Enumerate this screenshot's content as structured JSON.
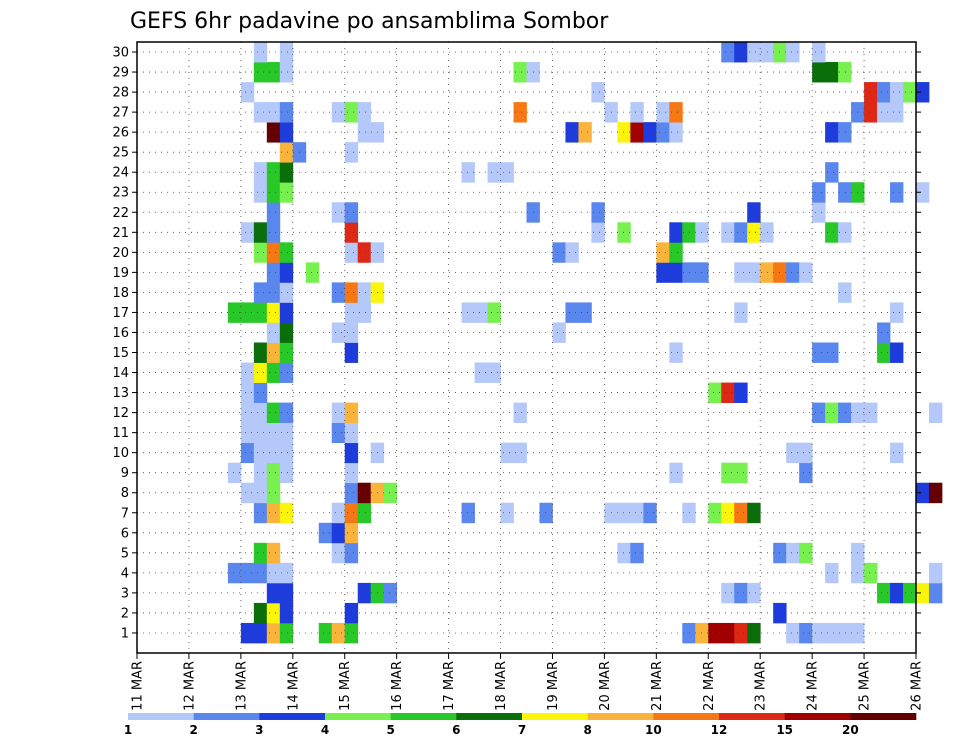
{
  "chart_data": {
    "type": "heatmap",
    "title": "GEFS 6hr padavine po ansamblima Sombor",
    "x_labels": [
      "11 MAR",
      "12 MAR",
      "13 MAR",
      "14 MAR",
      "15 MAR",
      "16 MAR",
      "17 MAR",
      "18 MAR",
      "19 MAR",
      "20 MAR",
      "21 MAR",
      "22 MAR",
      "23 MAR",
      "24 MAR",
      "25 MAR",
      "26 MAR"
    ],
    "y_labels": [
      "1",
      "2",
      "3",
      "4",
      "5",
      "6",
      "7",
      "8",
      "9",
      "10",
      "11",
      "12",
      "13",
      "14",
      "15",
      "16",
      "17",
      "18",
      "19",
      "20",
      "21",
      "22",
      "23",
      "24",
      "25",
      "26",
      "27",
      "28",
      "29",
      "30"
    ],
    "grid": true,
    "steps_per_day": 4,
    "legend_position": "bottom",
    "colorbar": {
      "labels": [
        "1",
        "2",
        "3",
        "4",
        "5",
        "6",
        "7",
        "8",
        "10",
        "12",
        "15",
        "20"
      ],
      "colors": [
        "#b4c8fa",
        "#5a87ee",
        "#1e3cdc",
        "#78f050",
        "#28c828",
        "#0a6e0a",
        "#faf50a",
        "#fab43c",
        "#f57814",
        "#dc2814",
        "#a00000",
        "#640000"
      ]
    },
    "cells": [
      [
        13.0,
        1,
        3
      ],
      [
        13.25,
        1,
        3
      ],
      [
        13.5,
        1,
        8
      ],
      [
        13.75,
        1,
        5
      ],
      [
        14.5,
        1,
        5
      ],
      [
        14.75,
        1,
        8
      ],
      [
        15.0,
        1,
        5
      ],
      [
        21.5,
        1,
        2
      ],
      [
        21.75,
        1,
        8
      ],
      [
        22.0,
        1,
        11
      ],
      [
        22.25,
        1,
        11
      ],
      [
        22.5,
        1,
        10
      ],
      [
        22.75,
        1,
        6
      ],
      [
        23.5,
        1,
        1
      ],
      [
        23.75,
        1,
        2
      ],
      [
        24.0,
        1,
        1
      ],
      [
        24.25,
        1,
        1
      ],
      [
        24.5,
        1,
        1
      ],
      [
        24.75,
        1,
        1
      ],
      [
        13.25,
        2,
        6
      ],
      [
        13.5,
        2,
        7
      ],
      [
        13.75,
        2,
        3
      ],
      [
        15.0,
        2,
        3
      ],
      [
        23.25,
        2,
        3
      ],
      [
        13.5,
        3,
        3
      ],
      [
        13.75,
        3,
        3
      ],
      [
        15.25,
        3,
        3
      ],
      [
        15.5,
        3,
        5
      ],
      [
        15.75,
        3,
        2
      ],
      [
        22.25,
        3,
        1
      ],
      [
        22.5,
        3,
        2
      ],
      [
        22.75,
        3,
        1
      ],
      [
        25.25,
        3,
        5
      ],
      [
        25.5,
        3,
        3
      ],
      [
        25.75,
        3,
        5
      ],
      [
        26.0,
        3,
        7
      ],
      [
        26.25,
        3,
        2
      ],
      [
        12.75,
        4,
        2
      ],
      [
        13.0,
        4,
        2
      ],
      [
        13.25,
        4,
        2
      ],
      [
        13.5,
        4,
        1
      ],
      [
        13.75,
        4,
        1
      ],
      [
        24.25,
        4,
        1
      ],
      [
        24.75,
        4,
        1
      ],
      [
        25.0,
        4,
        4
      ],
      [
        26.25,
        4,
        1
      ],
      [
        13.25,
        5,
        5
      ],
      [
        13.5,
        5,
        8
      ],
      [
        14.75,
        5,
        1
      ],
      [
        15.0,
        5,
        2
      ],
      [
        20.25,
        5,
        1
      ],
      [
        20.5,
        5,
        2
      ],
      [
        23.25,
        5,
        2
      ],
      [
        23.5,
        5,
        1
      ],
      [
        23.75,
        5,
        4
      ],
      [
        24.75,
        5,
        1
      ],
      [
        14.5,
        6,
        2
      ],
      [
        14.75,
        6,
        3
      ],
      [
        15.0,
        6,
        8
      ],
      [
        13.25,
        7,
        2
      ],
      [
        13.5,
        7,
        8
      ],
      [
        13.75,
        7,
        7
      ],
      [
        14.75,
        7,
        1
      ],
      [
        15.0,
        7,
        9
      ],
      [
        15.25,
        7,
        5
      ],
      [
        17.25,
        7,
        2
      ],
      [
        18.0,
        7,
        1
      ],
      [
        18.75,
        7,
        2
      ],
      [
        20.0,
        7,
        1
      ],
      [
        20.25,
        7,
        1
      ],
      [
        20.5,
        7,
        1
      ],
      [
        20.75,
        7,
        2
      ],
      [
        21.5,
        7,
        1
      ],
      [
        22.0,
        7,
        4
      ],
      [
        22.25,
        7,
        7
      ],
      [
        22.5,
        7,
        9
      ],
      [
        22.75,
        7,
        6
      ],
      [
        13.0,
        8,
        1
      ],
      [
        13.25,
        8,
        1
      ],
      [
        13.5,
        8,
        4
      ],
      [
        15.0,
        8,
        2
      ],
      [
        15.25,
        8,
        12
      ],
      [
        15.5,
        8,
        8
      ],
      [
        15.75,
        8,
        4
      ],
      [
        26.0,
        8,
        3
      ],
      [
        26.25,
        8,
        12
      ],
      [
        12.75,
        9,
        1
      ],
      [
        13.25,
        9,
        1
      ],
      [
        13.5,
        9,
        4
      ],
      [
        13.75,
        9,
        1
      ],
      [
        15.0,
        9,
        1
      ],
      [
        21.25,
        9,
        1
      ],
      [
        22.25,
        9,
        4
      ],
      [
        22.5,
        9,
        4
      ],
      [
        23.75,
        9,
        2
      ],
      [
        13.0,
        10,
        2
      ],
      [
        13.25,
        10,
        1
      ],
      [
        13.5,
        10,
        1
      ],
      [
        13.75,
        10,
        1
      ],
      [
        15.0,
        10,
        3
      ],
      [
        15.5,
        10,
        1
      ],
      [
        18.0,
        10,
        1
      ],
      [
        18.25,
        10,
        1
      ],
      [
        23.5,
        10,
        1
      ],
      [
        23.75,
        10,
        1
      ],
      [
        25.5,
        10,
        1
      ],
      [
        13.0,
        11,
        1
      ],
      [
        13.25,
        11,
        1
      ],
      [
        13.5,
        11,
        1
      ],
      [
        13.75,
        11,
        1
      ],
      [
        14.75,
        11,
        2
      ],
      [
        15.0,
        11,
        1
      ],
      [
        13.0,
        12,
        1
      ],
      [
        13.25,
        12,
        1
      ],
      [
        13.5,
        12,
        5
      ],
      [
        13.75,
        12,
        2
      ],
      [
        14.75,
        12,
        1
      ],
      [
        15.0,
        12,
        8
      ],
      [
        18.25,
        12,
        1
      ],
      [
        24.0,
        12,
        2
      ],
      [
        24.25,
        12,
        4
      ],
      [
        24.5,
        12,
        2
      ],
      [
        24.75,
        12,
        1
      ],
      [
        25.0,
        12,
        1
      ],
      [
        26.25,
        12,
        1
      ],
      [
        13.0,
        13,
        1
      ],
      [
        13.25,
        13,
        2
      ],
      [
        22.0,
        13,
        4
      ],
      [
        22.25,
        13,
        10
      ],
      [
        22.5,
        13,
        3
      ],
      [
        13.0,
        14,
        1
      ],
      [
        13.25,
        14,
        7
      ],
      [
        13.5,
        14,
        5
      ],
      [
        13.75,
        14,
        2
      ],
      [
        17.5,
        14,
        1
      ],
      [
        17.75,
        14,
        1
      ],
      [
        13.25,
        15,
        6
      ],
      [
        13.5,
        15,
        8
      ],
      [
        13.75,
        15,
        5
      ],
      [
        15.0,
        15,
        3
      ],
      [
        21.25,
        15,
        1
      ],
      [
        24.0,
        15,
        2
      ],
      [
        24.25,
        15,
        2
      ],
      [
        25.25,
        15,
        5
      ],
      [
        25.5,
        15,
        3
      ],
      [
        13.5,
        16,
        1
      ],
      [
        13.75,
        16,
        6
      ],
      [
        14.75,
        16,
        1
      ],
      [
        15.0,
        16,
        1
      ],
      [
        19.0,
        16,
        1
      ],
      [
        25.25,
        16,
        2
      ],
      [
        12.75,
        17,
        5
      ],
      [
        13.0,
        17,
        5
      ],
      [
        13.25,
        17,
        5
      ],
      [
        13.5,
        17,
        7
      ],
      [
        13.75,
        17,
        3
      ],
      [
        15.0,
        17,
        1
      ],
      [
        15.25,
        17,
        1
      ],
      [
        17.25,
        17,
        1
      ],
      [
        17.5,
        17,
        1
      ],
      [
        17.75,
        17,
        4
      ],
      [
        19.25,
        17,
        2
      ],
      [
        19.5,
        17,
        2
      ],
      [
        22.5,
        17,
        1
      ],
      [
        25.5,
        17,
        1
      ],
      [
        13.25,
        18,
        2
      ],
      [
        13.5,
        18,
        2
      ],
      [
        13.75,
        18,
        1
      ],
      [
        14.75,
        18,
        2
      ],
      [
        15.0,
        18,
        9
      ],
      [
        15.25,
        18,
        1
      ],
      [
        15.5,
        18,
        7
      ],
      [
        24.5,
        18,
        1
      ],
      [
        13.5,
        19,
        2
      ],
      [
        13.75,
        19,
        3
      ],
      [
        14.25,
        19,
        4
      ],
      [
        21.0,
        19,
        3
      ],
      [
        21.25,
        19,
        3
      ],
      [
        21.5,
        19,
        2
      ],
      [
        21.75,
        19,
        2
      ],
      [
        22.5,
        19,
        1
      ],
      [
        22.75,
        19,
        1
      ],
      [
        23.0,
        19,
        8
      ],
      [
        23.25,
        19,
        9
      ],
      [
        23.5,
        19,
        2
      ],
      [
        23.75,
        19,
        1
      ],
      [
        13.25,
        20,
        4
      ],
      [
        13.5,
        20,
        9
      ],
      [
        13.75,
        20,
        5
      ],
      [
        15.0,
        20,
        1
      ],
      [
        15.25,
        20,
        10
      ],
      [
        15.5,
        20,
        1
      ],
      [
        19.0,
        20,
        2
      ],
      [
        19.25,
        20,
        1
      ],
      [
        21.0,
        20,
        8
      ],
      [
        21.25,
        20,
        5
      ],
      [
        13.0,
        21,
        1
      ],
      [
        13.25,
        21,
        6
      ],
      [
        13.5,
        21,
        2
      ],
      [
        15.0,
        21,
        10
      ],
      [
        19.75,
        21,
        1
      ],
      [
        20.25,
        21,
        4
      ],
      [
        21.25,
        21,
        3
      ],
      [
        21.5,
        21,
        5
      ],
      [
        21.75,
        21,
        1
      ],
      [
        22.25,
        21,
        1
      ],
      [
        22.5,
        21,
        2
      ],
      [
        22.75,
        21,
        7
      ],
      [
        23.0,
        21,
        1
      ],
      [
        24.25,
        21,
        5
      ],
      [
        24.5,
        21,
        1
      ],
      [
        13.5,
        22,
        2
      ],
      [
        14.75,
        22,
        1
      ],
      [
        15.0,
        22,
        2
      ],
      [
        18.5,
        22,
        2
      ],
      [
        19.75,
        22,
        2
      ],
      [
        22.75,
        22,
        3
      ],
      [
        24.0,
        22,
        1
      ],
      [
        13.25,
        23,
        1
      ],
      [
        13.5,
        23,
        5
      ],
      [
        13.75,
        23,
        4
      ],
      [
        24.0,
        23,
        2
      ],
      [
        24.5,
        23,
        2
      ],
      [
        24.75,
        23,
        5
      ],
      [
        25.5,
        23,
        2
      ],
      [
        26.0,
        23,
        1
      ],
      [
        13.25,
        24,
        1
      ],
      [
        13.5,
        24,
        5
      ],
      [
        13.75,
        24,
        6
      ],
      [
        17.25,
        24,
        1
      ],
      [
        17.75,
        24,
        1
      ],
      [
        18.0,
        24,
        1
      ],
      [
        24.25,
        24,
        2
      ],
      [
        13.75,
        25,
        8
      ],
      [
        14.0,
        25,
        2
      ],
      [
        15.0,
        25,
        1
      ],
      [
        13.5,
        26,
        12
      ],
      [
        13.75,
        26,
        3
      ],
      [
        15.25,
        26,
        1
      ],
      [
        15.5,
        26,
        1
      ],
      [
        19.25,
        26,
        3
      ],
      [
        19.5,
        26,
        8
      ],
      [
        20.25,
        26,
        7
      ],
      [
        20.5,
        26,
        11
      ],
      [
        20.75,
        26,
        3
      ],
      [
        21.0,
        26,
        2
      ],
      [
        21.25,
        26,
        1
      ],
      [
        24.25,
        26,
        3
      ],
      [
        24.5,
        26,
        2
      ],
      [
        13.25,
        27,
        1
      ],
      [
        13.5,
        27,
        1
      ],
      [
        13.75,
        27,
        2
      ],
      [
        14.75,
        27,
        1
      ],
      [
        15.0,
        27,
        4
      ],
      [
        15.25,
        27,
        1
      ],
      [
        18.25,
        27,
        9
      ],
      [
        20.0,
        27,
        1
      ],
      [
        20.5,
        27,
        1
      ],
      [
        21.0,
        27,
        1
      ],
      [
        21.25,
        27,
        9
      ],
      [
        24.75,
        27,
        2
      ],
      [
        25.0,
        27,
        10
      ],
      [
        25.25,
        27,
        1
      ],
      [
        25.5,
        27,
        1
      ],
      [
        13.0,
        28,
        1
      ],
      [
        19.75,
        28,
        1
      ],
      [
        25.0,
        28,
        10
      ],
      [
        25.25,
        28,
        2
      ],
      [
        25.5,
        28,
        1
      ],
      [
        25.75,
        28,
        4
      ],
      [
        26.0,
        28,
        3
      ],
      [
        13.25,
        29,
        5
      ],
      [
        13.5,
        29,
        5
      ],
      [
        13.75,
        29,
        1
      ],
      [
        18.25,
        29,
        4
      ],
      [
        18.5,
        29,
        1
      ],
      [
        24.0,
        29,
        6
      ],
      [
        24.25,
        29,
        6
      ],
      [
        24.5,
        29,
        4
      ],
      [
        13.25,
        30,
        1
      ],
      [
        13.75,
        30,
        1
      ],
      [
        22.25,
        30,
        2
      ],
      [
        22.5,
        30,
        3
      ],
      [
        22.75,
        30,
        1
      ],
      [
        23.0,
        30,
        1
      ],
      [
        23.25,
        30,
        4
      ],
      [
        23.5,
        30,
        1
      ],
      [
        24.0,
        30,
        1
      ]
    ]
  }
}
